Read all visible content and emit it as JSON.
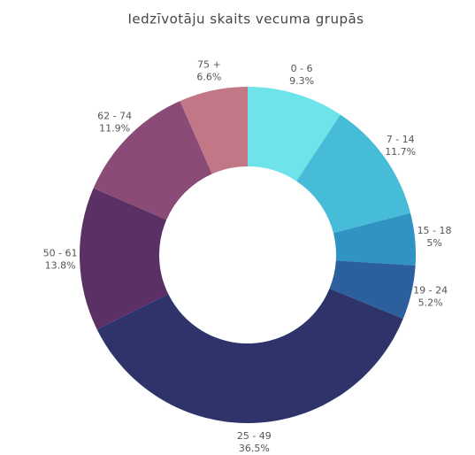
{
  "chart_data": {
    "type": "pie",
    "title": "Iedzīvotāju skaits vecuma grupās",
    "categories": [
      "0 - 6",
      "7 - 14",
      "15 - 18",
      "19 - 24",
      "25 - 49",
      "50 - 61",
      "62 - 74",
      "75 +"
    ],
    "values": [
      9.3,
      11.7,
      5,
      5.2,
      36.5,
      13.8,
      11.9,
      6.6
    ],
    "value_labels": [
      "9.3%",
      "11.7%",
      "5%",
      "5.2%",
      "36.5%",
      "13.8%",
      "11.9%",
      "6.6%"
    ],
    "colors": [
      "#6fe3ea",
      "#46bcd9",
      "#2f94c3",
      "#2b5f9e",
      "#2e3369",
      "#5b3065",
      "#8a4b76",
      "#c27787"
    ]
  }
}
